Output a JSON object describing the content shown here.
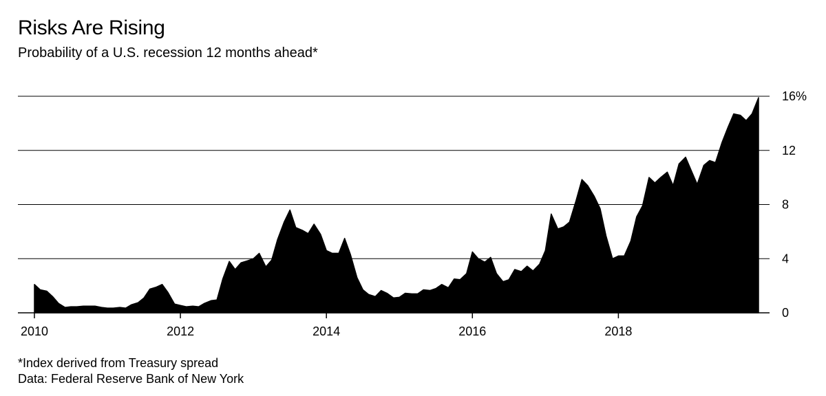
{
  "title": "Risks Are Rising",
  "subtitle": "Probability of a U.S. recession 12 months ahead*",
  "footnotes": {
    "note": "*Index derived from Treasury spread",
    "source": "Data: Federal Reserve Bank of New York"
  },
  "colors": {
    "area": "#000000",
    "gridline": "#000000",
    "background": "#ffffff"
  },
  "chart_data": {
    "type": "area",
    "title": "Risks Are Rising",
    "subtitle": "Probability of a U.S. recession 12 months ahead*",
    "xlabel": "",
    "ylabel": "",
    "xlim": [
      2010.0,
      2019.92
    ],
    "ylim": [
      0,
      16
    ],
    "grid": true,
    "y_axis_side": "right",
    "x_ticks": [
      {
        "value": 2010,
        "label": "2010"
      },
      {
        "value": 2012,
        "label": "2012"
      },
      {
        "value": 2014,
        "label": "2014"
      },
      {
        "value": 2016,
        "label": "2016"
      },
      {
        "value": 2018,
        "label": "2018"
      }
    ],
    "y_ticks": [
      {
        "value": 0,
        "label": "0"
      },
      {
        "value": 4,
        "label": "4"
      },
      {
        "value": 8,
        "label": "8"
      },
      {
        "value": 12,
        "label": "12"
      },
      {
        "value": 16,
        "label": "16%"
      }
    ],
    "series": [
      {
        "x": [
          2010.0,
          2010.08,
          2010.17,
          2010.25,
          2010.33,
          2010.42,
          2010.5,
          2010.58,
          2010.67,
          2010.75,
          2010.83,
          2010.92,
          2011.0,
          2011.08,
          2011.17,
          2011.25,
          2011.33,
          2011.42,
          2011.5,
          2011.58,
          2011.67,
          2011.75,
          2011.83,
          2011.92,
          2012.0,
          2012.08,
          2012.17,
          2012.25,
          2012.33,
          2012.42,
          2012.5,
          2012.58,
          2012.67,
          2012.75,
          2012.83,
          2012.92,
          2013.0,
          2013.08,
          2013.17,
          2013.25,
          2013.33,
          2013.42,
          2013.5,
          2013.58,
          2013.67,
          2013.75,
          2013.83,
          2013.92,
          2014.0,
          2014.08,
          2014.17,
          2014.25,
          2014.33,
          2014.42,
          2014.5,
          2014.58,
          2014.67,
          2014.75,
          2014.83,
          2014.92,
          2015.0,
          2015.08,
          2015.17,
          2015.25,
          2015.33,
          2015.42,
          2015.5,
          2015.58,
          2015.67,
          2015.75,
          2015.83,
          2015.92,
          2016.0,
          2016.08,
          2016.17,
          2016.25,
          2016.33,
          2016.42,
          2016.5,
          2016.58,
          2016.67,
          2016.75,
          2016.83,
          2016.92,
          2017.0,
          2017.08,
          2017.17,
          2017.25,
          2017.33,
          2017.42,
          2017.5,
          2017.58,
          2017.67,
          2017.75,
          2017.83,
          2017.92,
          2018.0,
          2018.08,
          2018.17,
          2018.25,
          2018.33,
          2018.42,
          2018.5,
          2018.58,
          2018.67,
          2018.75,
          2018.83,
          2018.92,
          2019.0,
          2019.08,
          2019.17,
          2019.25,
          2019.33,
          2019.42,
          2019.5,
          2019.58,
          2019.67,
          2019.75,
          2019.83,
          2019.92
        ],
        "values": [
          2.1,
          1.7,
          1.6,
          1.2,
          0.7,
          0.4,
          0.45,
          0.45,
          0.5,
          0.5,
          0.5,
          0.4,
          0.35,
          0.35,
          0.4,
          0.35,
          0.6,
          0.75,
          1.1,
          1.75,
          1.9,
          2.1,
          1.5,
          0.65,
          0.55,
          0.45,
          0.5,
          0.45,
          0.7,
          0.9,
          0.95,
          2.5,
          3.8,
          3.2,
          3.7,
          3.85,
          4.0,
          4.4,
          3.4,
          3.9,
          5.4,
          6.7,
          7.6,
          6.3,
          6.1,
          5.85,
          6.55,
          5.8,
          4.6,
          4.4,
          4.4,
          5.5,
          4.3,
          2.6,
          1.7,
          1.35,
          1.2,
          1.65,
          1.45,
          1.1,
          1.15,
          1.45,
          1.4,
          1.4,
          1.7,
          1.65,
          1.8,
          2.1,
          1.85,
          2.5,
          2.45,
          2.9,
          4.5,
          4.0,
          3.75,
          4.1,
          2.9,
          2.3,
          2.45,
          3.2,
          3.05,
          3.45,
          3.1,
          3.6,
          4.6,
          7.3,
          6.2,
          6.35,
          6.7,
          8.3,
          9.85,
          9.4,
          8.6,
          7.7,
          5.7,
          4.0,
          4.2,
          4.2,
          5.3,
          7.1,
          7.9,
          10.0,
          9.6,
          10.0,
          10.4,
          9.4,
          11.0,
          11.5,
          10.5,
          9.5,
          10.9,
          11.25,
          11.1,
          12.6,
          13.7,
          14.7,
          14.6,
          14.2,
          14.7,
          15.9
        ]
      }
    ]
  }
}
